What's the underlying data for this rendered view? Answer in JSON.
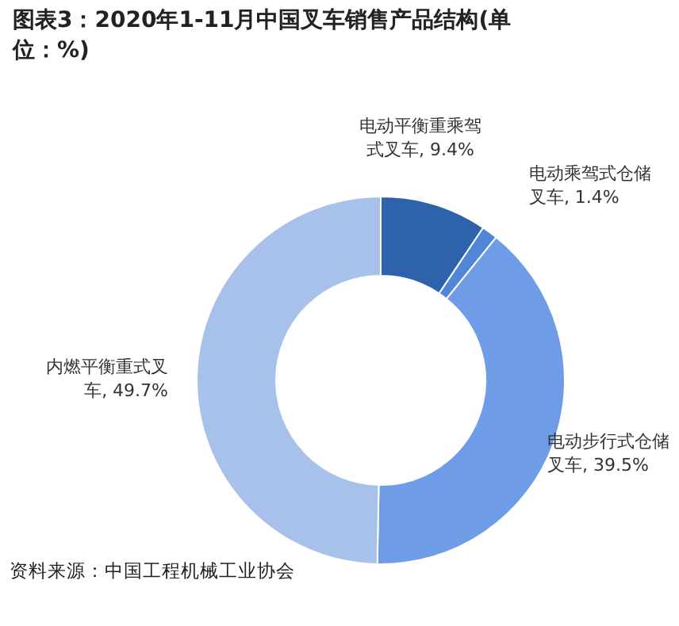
{
  "chart_data": {
    "type": "donut",
    "title": "图表3：2020年1-11月中国叉车销售产品结构(单位：%)",
    "categories": [
      "电动平衡重乘驾式叉车, 9.4%",
      "电动乘驾式仓储叉车, 1.4%",
      "电动步行式仓储叉车, 39.5%",
      "内燃平衡重式叉车, 49.7%"
    ],
    "values": [
      9.4,
      1.4,
      39.5,
      49.7
    ],
    "colors": [
      "#2e62ad",
      "#4f86d6",
      "#6f9ce6",
      "#a8c1ea"
    ],
    "annotations": [
      "资料来源：中国工程机械工业协会"
    ]
  }
}
